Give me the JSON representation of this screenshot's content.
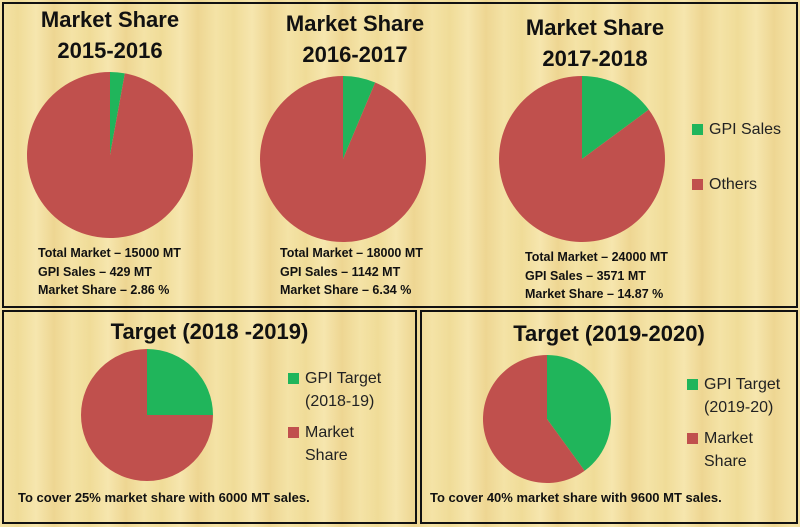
{
  "colors": {
    "primary": "#20b55b",
    "secondary": "#c0504d"
  },
  "chart_data": [
    {
      "type": "pie",
      "title": [
        "Market Share",
        "2015-2016"
      ],
      "slices": [
        {
          "label": "GPI Sales",
          "value": 2.86
        },
        {
          "label": "Others",
          "value": 97.14
        }
      ],
      "stats": [
        "Total Market – 15000 MT",
        "GPI Sales – 429 MT",
        "Market Share – 2.86 %"
      ]
    },
    {
      "type": "pie",
      "title": [
        "Market Share",
        "2016-2017"
      ],
      "slices": [
        {
          "label": "GPI Sales",
          "value": 6.34
        },
        {
          "label": "Others",
          "value": 93.66
        }
      ],
      "stats": [
        "Total Market – 18000 MT",
        "GPI Sales – 1142 MT",
        "Market Share – 6.34 %"
      ]
    },
    {
      "type": "pie",
      "title": [
        "Market Share",
        "2017-2018"
      ],
      "slices": [
        {
          "label": "GPI Sales",
          "value": 14.87
        },
        {
          "label": "Others",
          "value": 85.13
        }
      ],
      "stats": [
        "Total Market – 24000 MT",
        "GPI Sales – 3571 MT",
        "Market Share – 14.87 %"
      ],
      "legend": [
        "GPI Sales",
        "Others"
      ]
    },
    {
      "type": "pie",
      "title": "Target (2018 -2019)",
      "slices": [
        {
          "label": "GPI Target (2018-19)",
          "value": 25
        },
        {
          "label": "Market Share",
          "value": 75
        }
      ],
      "legend": [
        [
          "GPI Target",
          "(2018-19)"
        ],
        [
          "Market",
          "Share"
        ]
      ],
      "note": "To cover 25% market share with 6000 MT sales."
    },
    {
      "type": "pie",
      "title": "Target (2019-2020)",
      "slices": [
        {
          "label": "GPI Target (2019-20)",
          "value": 40
        },
        {
          "label": "Market Share",
          "value": 60
        }
      ],
      "legend": [
        [
          "GPI Target",
          "(2019-20)"
        ],
        [
          "Market",
          "Share"
        ]
      ],
      "note": "To cover 40% market share with 9600 MT sales."
    }
  ]
}
